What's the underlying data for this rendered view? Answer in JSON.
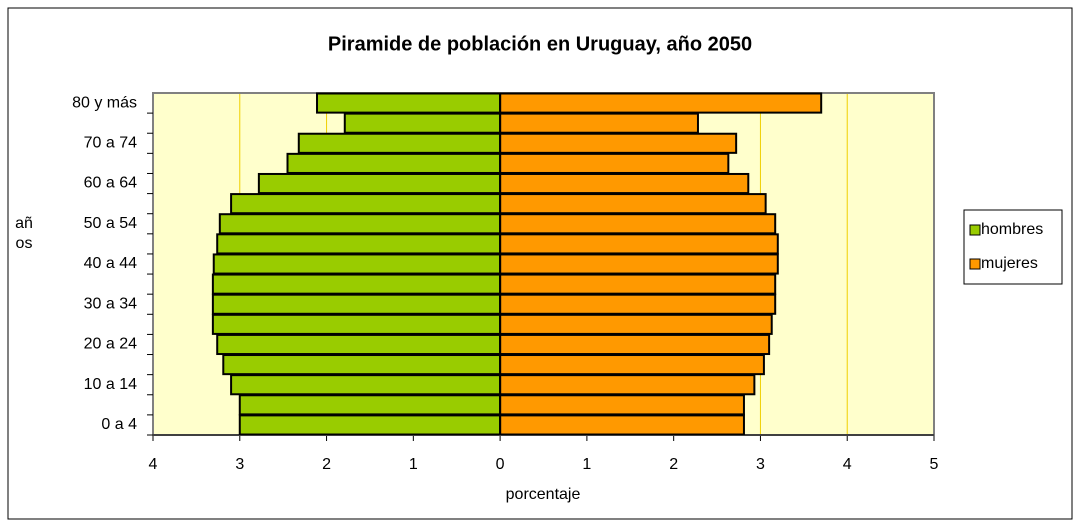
{
  "chart_data": {
    "type": "bar",
    "orientation": "horizontal",
    "title": "Piramide de población en Uruguay, año 2050",
    "x_label": "porcentaje",
    "y_label": "años",
    "categories": [
      "0 a 4",
      null,
      "10 a 14",
      null,
      "20 a 24",
      null,
      "30 a 34",
      null,
      "40 a 44",
      null,
      "50 a 54",
      null,
      "60 a 64",
      null,
      "70 a 74",
      null,
      "80 y más"
    ],
    "series": [
      {
        "name": "hombres",
        "color": "#99cc00",
        "values": [
          -3.0,
          -3.0,
          -3.1,
          -3.19,
          -3.26,
          -3.31,
          -3.31,
          -3.31,
          -3.3,
          -3.26,
          -3.23,
          -3.1,
          -2.78,
          -2.45,
          -2.32,
          -1.79,
          -2.11
        ]
      },
      {
        "name": "mujeres",
        "color": "#ff9900",
        "values": [
          2.81,
          2.81,
          2.93,
          3.04,
          3.1,
          3.13,
          3.17,
          3.17,
          3.2,
          3.2,
          3.17,
          3.06,
          2.86,
          2.63,
          2.72,
          2.28,
          3.7
        ]
      }
    ],
    "xlim": [
      -4,
      5
    ],
    "xticks": [
      {
        "value": -4,
        "label": "4"
      },
      {
        "value": -3,
        "label": "3"
      },
      {
        "value": -2,
        "label": "2"
      },
      {
        "value": -1,
        "label": "1"
      },
      0,
      1,
      2,
      3,
      4,
      5
    ],
    "grid": true,
    "legend": "right"
  }
}
